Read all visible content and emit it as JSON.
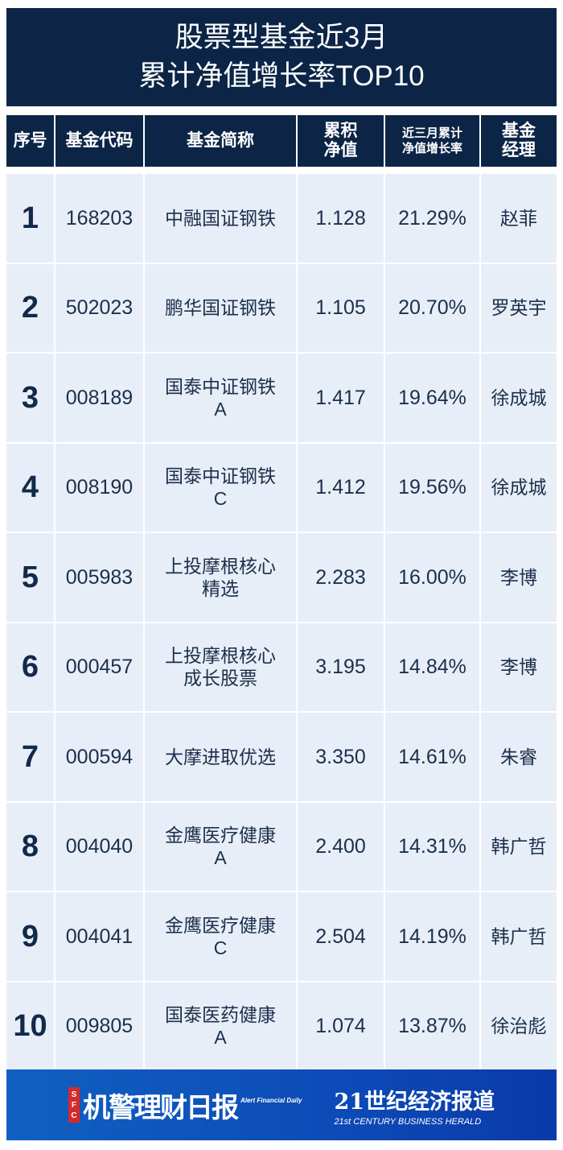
{
  "title": {
    "line1": "股票型基金近3月",
    "line2": "累计净值增长率TOP10"
  },
  "headers": {
    "rank": "序号",
    "code": "基金代码",
    "name": "基金简称",
    "nav": [
      "累积",
      "净值"
    ],
    "growth": [
      "近三月累计",
      "净值增长率"
    ],
    "manager": [
      "基金",
      "经理"
    ]
  },
  "rows": [
    {
      "rank": "1",
      "code": "168203",
      "name": "中融国证钢铁",
      "nav": "1.128",
      "growth": "21.29%",
      "manager": "赵菲"
    },
    {
      "rank": "2",
      "code": "502023",
      "name": "鹏华国证钢铁",
      "nav": "1.105",
      "growth": "20.70%",
      "manager": "罗英宇"
    },
    {
      "rank": "3",
      "code": "008189",
      "name": "国泰中证钢铁A",
      "nav": "1.417",
      "growth": "19.64%",
      "manager": "徐成城"
    },
    {
      "rank": "4",
      "code": "008190",
      "name": "国泰中证钢铁C",
      "nav": "1.412",
      "growth": "19.56%",
      "manager": "徐成城"
    },
    {
      "rank": "5",
      "code": "005983",
      "name": "上投摩根核心精选",
      "nav": "2.283",
      "growth": "16.00%",
      "manager": "李博"
    },
    {
      "rank": "6",
      "code": "000457",
      "name": "上投摩根核心成长股票",
      "nav": "3.195",
      "growth": "14.84%",
      "manager": "李博"
    },
    {
      "rank": "7",
      "code": "000594",
      "name": "大摩进取优选",
      "nav": "3.350",
      "growth": "14.61%",
      "manager": "朱睿"
    },
    {
      "rank": "8",
      "code": "004040",
      "name": "金鹰医疗健康A",
      "nav": "2.400",
      "growth": "14.31%",
      "manager": "韩广哲"
    },
    {
      "rank": "9",
      "code": "004041",
      "name": "金鹰医疗健康C",
      "nav": "2.504",
      "growth": "14.19%",
      "manager": "韩广哲"
    },
    {
      "rank": "10",
      "code": "009805",
      "name": "国泰医药健康A",
      "nav": "1.074",
      "growth": "13.87%",
      "manager": "徐治彪"
    }
  ],
  "footer": {
    "logo1_badge": "SFC",
    "logo1_cn": "机警理财日报",
    "logo1_en": "Alert Financial Daily",
    "logo2_cn": "21世纪经济报道",
    "logo2_en": "21st CENTURY BUSINESS HERALD"
  },
  "colors": {
    "header_bg": "#0c2547",
    "cell_bg": "#e8eef7",
    "footer_bg": "#0d4bb8"
  }
}
